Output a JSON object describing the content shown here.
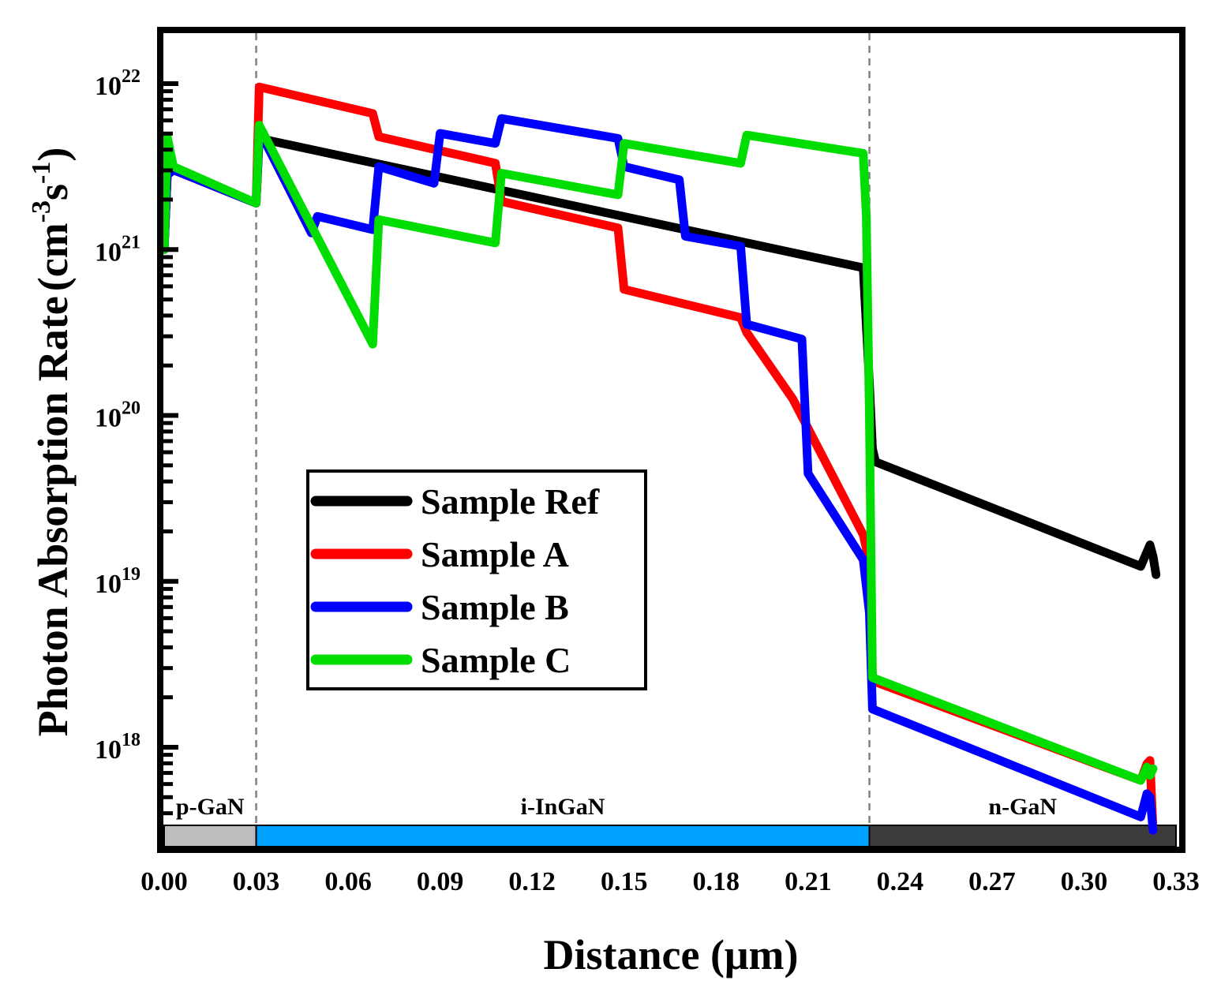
{
  "chart_data": {
    "type": "line",
    "title": "",
    "xlabel": "Distance (μm)",
    "ylabel": "Photon Absorption Rate",
    "ylabel_unit": "(cm",
    "ylabel_unit_exp1": "-3",
    "ylabel_unit_mid": "s",
    "ylabel_unit_exp2": "-1",
    "ylabel_unit_close": ")",
    "xlim": [
      0.0,
      0.33
    ],
    "ylim_log10": [
      17.5,
      22.3
    ],
    "yscale": "log",
    "x_ticks": [
      "0.00",
      "0.03",
      "0.06",
      "0.09",
      "0.12",
      "0.15",
      "0.18",
      "0.21",
      "0.24",
      "0.27",
      "0.30",
      "0.33"
    ],
    "y_ticks": [
      {
        "base": "10",
        "exp": "18",
        "log": 18
      },
      {
        "base": "10",
        "exp": "19",
        "log": 19
      },
      {
        "base": "10",
        "exp": "20",
        "log": 20
      },
      {
        "base": "10",
        "exp": "21",
        "log": 21
      },
      {
        "base": "10",
        "exp": "22",
        "log": 22
      }
    ],
    "legend_position": "center-left",
    "regions": [
      {
        "label": "p-GaN",
        "x0": 0.0,
        "x1": 0.03,
        "color": "#bdbdbd"
      },
      {
        "label": "i-InGaN",
        "x0": 0.03,
        "x1": 0.23,
        "color": "#00a0ff"
      },
      {
        "label": "n-GaN",
        "x0": 0.23,
        "x1": 0.33,
        "color": "#3c3c3c"
      }
    ],
    "boundaries": [
      0.03,
      0.23
    ],
    "series": [
      {
        "name": "Sample Ref",
        "color": "#000000",
        "x": [
          0.0,
          0.001,
          0.003,
          0.03,
          0.031,
          0.228,
          0.23,
          0.231,
          0.232,
          0.3185,
          0.3215,
          0.3225,
          0.3235
        ],
        "log_y": [
          21.0,
          21.45,
          21.48,
          21.28,
          21.67,
          20.89,
          20.2,
          19.8,
          19.72,
          19.09,
          19.22,
          19.15,
          19.04
        ]
      },
      {
        "name": "Sample A",
        "color": "#ff0000",
        "x": [
          0.0,
          0.001,
          0.003,
          0.03,
          0.031,
          0.068,
          0.07,
          0.108,
          0.11,
          0.148,
          0.15,
          0.188,
          0.19,
          0.205,
          0.228,
          0.23,
          0.231,
          0.3185,
          0.3205,
          0.3215,
          0.3225
        ],
        "log_y": [
          21.0,
          21.45,
          21.48,
          21.28,
          21.98,
          21.82,
          21.68,
          21.52,
          21.29,
          21.13,
          20.76,
          20.59,
          20.5,
          20.1,
          19.28,
          19.12,
          18.4,
          17.8,
          17.9,
          17.92,
          17.5
        ]
      },
      {
        "name": "Sample B",
        "color": "#0000ff",
        "x": [
          0.0,
          0.001,
          0.003,
          0.03,
          0.031,
          0.048,
          0.05,
          0.068,
          0.07,
          0.088,
          0.09,
          0.108,
          0.11,
          0.148,
          0.15,
          0.168,
          0.17,
          0.188,
          0.19,
          0.208,
          0.21,
          0.228,
          0.23,
          0.231,
          0.3185,
          0.3205,
          0.3215,
          0.3225
        ],
        "log_y": [
          21.0,
          21.45,
          21.48,
          21.28,
          21.72,
          21.1,
          21.2,
          21.12,
          21.5,
          21.4,
          21.7,
          21.64,
          21.79,
          21.67,
          21.5,
          21.42,
          21.08,
          21.02,
          20.55,
          20.46,
          19.65,
          19.13,
          18.81,
          18.23,
          17.58,
          17.72,
          17.7,
          17.5
        ]
      },
      {
        "name": "Sample C",
        "color": "#00dd00",
        "x": [
          0.0,
          0.001,
          0.003,
          0.03,
          0.031,
          0.068,
          0.07,
          0.108,
          0.11,
          0.148,
          0.15,
          0.188,
          0.19,
          0.228,
          0.229,
          0.23,
          0.231,
          0.3185,
          0.3205,
          0.3215,
          0.3225
        ],
        "log_y": [
          21.0,
          21.68,
          21.5,
          21.28,
          21.75,
          20.43,
          21.18,
          21.04,
          21.46,
          21.33,
          21.64,
          21.52,
          21.69,
          21.58,
          21.2,
          20.0,
          18.42,
          17.8,
          17.88,
          17.83,
          17.87
        ]
      }
    ]
  }
}
